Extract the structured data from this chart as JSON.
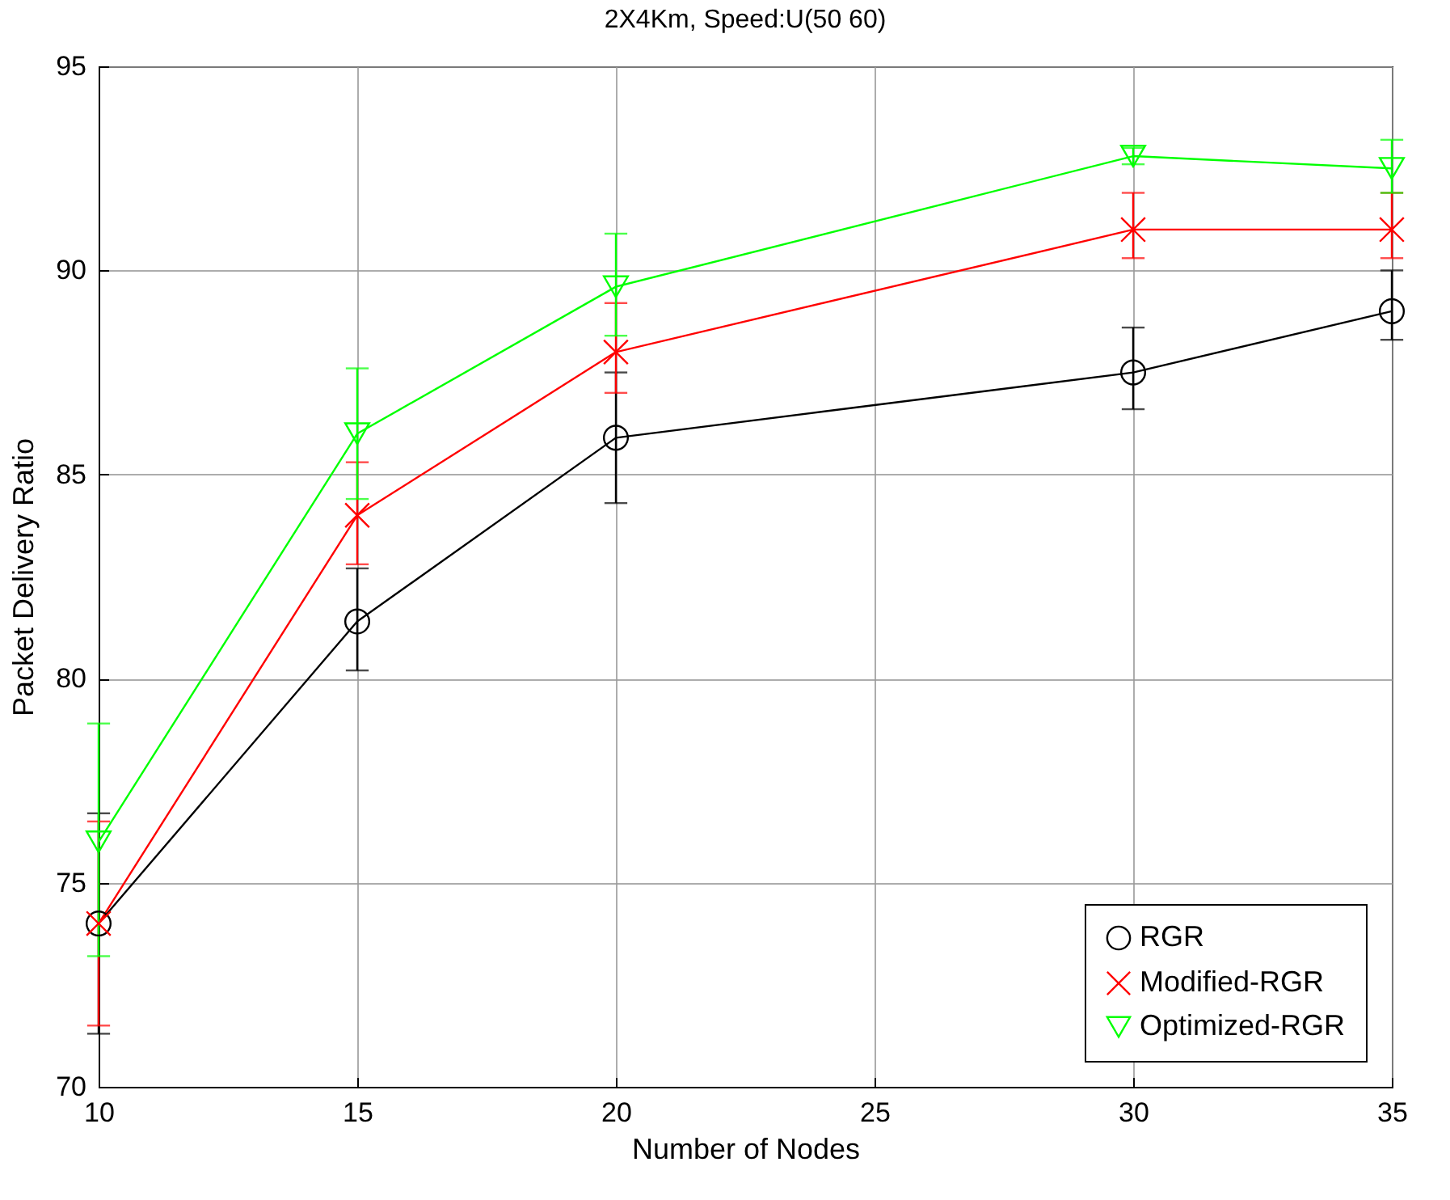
{
  "chart_data": {
    "type": "line",
    "title": "2X4Km, Speed:U(50 60)",
    "xlabel": "Number of Nodes",
    "ylabel": "Packet Delivery Ratio",
    "x": [
      10,
      15,
      20,
      30,
      35
    ],
    "series": [
      {
        "name": "RGR",
        "color": "#000000",
        "marker": "circle",
        "values": [
          74,
          81.4,
          85.9,
          87.5,
          89
        ],
        "errors": [
          [
            71.3,
            76.7
          ],
          [
            80.2,
            82.7
          ],
          [
            84.3,
            87.5
          ],
          [
            86.6,
            88.6
          ],
          [
            88.3,
            90
          ]
        ]
      },
      {
        "name": "Modified-RGR",
        "color": "#ff0000",
        "marker": "cross",
        "values": [
          74,
          84,
          88,
          91,
          91
        ],
        "errors": [
          [
            71.5,
            76.5
          ],
          [
            82.8,
            85.3
          ],
          [
            87,
            89.2
          ],
          [
            90.3,
            91.9
          ],
          [
            90.3,
            91.9
          ]
        ]
      },
      {
        "name": "Optimized-RGR",
        "color": "#00ff00",
        "marker": "triangle",
        "values": [
          76,
          86,
          89.6,
          92.8,
          92.5
        ],
        "errors": [
          [
            73.2,
            78.9
          ],
          [
            84.4,
            87.6
          ],
          [
            88.4,
            90.9
          ],
          [
            92.6,
            93
          ],
          [
            91.9,
            93.2
          ]
        ]
      }
    ],
    "xlim": [
      10,
      35
    ],
    "xticks": [
      10,
      15,
      20,
      25,
      30,
      35
    ],
    "ylim": [
      70,
      95
    ],
    "yticks": [
      70,
      75,
      80,
      85,
      90,
      95
    ],
    "grid": true,
    "legend": "bottom right",
    "line_style": "solid"
  }
}
